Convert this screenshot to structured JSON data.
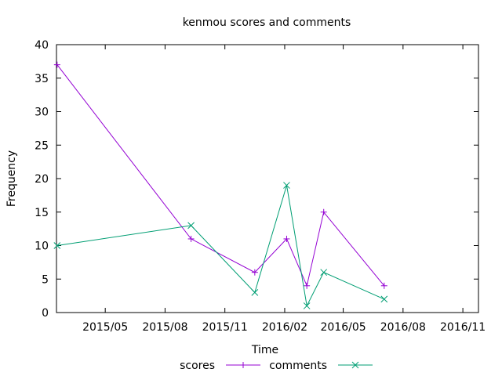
{
  "chart_data": {
    "type": "line",
    "title": "kenmou scores and comments",
    "xlabel": "Time",
    "ylabel": "Frequency",
    "x_type": "date",
    "xlim": [
      "2015-02-15",
      "2016-11-25"
    ],
    "ylim": [
      0,
      40
    ],
    "x_ticks": [
      {
        "date": "2015-05-01",
        "label": "2015/05"
      },
      {
        "date": "2015-08-01",
        "label": "2015/08"
      },
      {
        "date": "2015-11-01",
        "label": "2015/11"
      },
      {
        "date": "2016-02-01",
        "label": "2016/02"
      },
      {
        "date": "2016-05-01",
        "label": "2016/05"
      },
      {
        "date": "2016-08-01",
        "label": "2016/08"
      },
      {
        "date": "2016-11-01",
        "label": "2016/11"
      }
    ],
    "y_ticks": [
      0,
      5,
      10,
      15,
      20,
      25,
      30,
      35,
      40
    ],
    "grid": false,
    "legend_position": "bottom-center",
    "series": [
      {
        "name": "scores",
        "color": "#9400d3",
        "marker": "plus",
        "x": [
          "2015-02-16",
          "2015-09-10",
          "2015-12-17",
          "2016-02-04",
          "2016-03-06",
          "2016-04-01",
          "2016-07-03"
        ],
        "values": [
          37,
          11,
          6,
          11,
          4,
          15,
          4
        ]
      },
      {
        "name": "comments",
        "color": "#009e73",
        "marker": "cross",
        "x": [
          "2015-02-16",
          "2015-09-10",
          "2015-12-17",
          "2016-02-04",
          "2016-03-06",
          "2016-04-01",
          "2016-07-03"
        ],
        "values": [
          10,
          13,
          3,
          19,
          1,
          6,
          2
        ]
      }
    ]
  }
}
